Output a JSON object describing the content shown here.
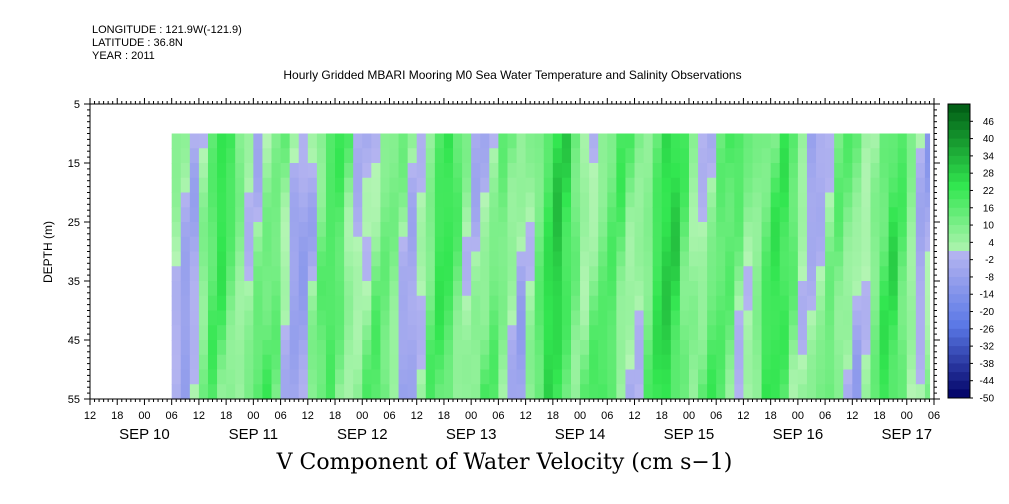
{
  "header": {
    "longitude": "LONGITUDE : 121.9W(-121.9)",
    "latitude": "LATITUDE : 36.8N",
    "year": "YEAR : 2011"
  },
  "chart_data": {
    "type": "heatmap",
    "title": "Hourly Gridded MBARI Mooring M0 Sea Water Temperature and Salinity Observations",
    "xlabel": "V Component of Water Velocity (cm s−1)",
    "ylabel": "DEPTH (m)",
    "ylim": [
      5,
      55
    ],
    "y_inverted": true,
    "y_ticks": [
      "5",
      "15",
      "25",
      "35",
      "45",
      "55"
    ],
    "data_depth_range": [
      10,
      55
    ],
    "x_range_hours": [
      0,
      186
    ],
    "data_start_hour": 18,
    "x_hour_labels": [
      "12",
      "18",
      "00",
      "06",
      "12",
      "18",
      "00",
      "06",
      "12",
      "18",
      "00",
      "06",
      "12",
      "18",
      "00",
      "06",
      "12",
      "18",
      "00",
      "06",
      "12",
      "18",
      "00",
      "06",
      "12",
      "18",
      "00",
      "06",
      "12",
      "18",
      "00",
      "06"
    ],
    "x_day_labels": [
      "SEP 10",
      "SEP 11",
      "SEP 12",
      "SEP 13",
      "SEP 14",
      "SEP 15",
      "SEP 16",
      "SEP 17"
    ],
    "colorbar_labels": [
      "46",
      "40",
      "34",
      "28",
      "22",
      "16",
      "10",
      "4",
      "-2",
      "-8",
      "-14",
      "-20",
      "-26",
      "-32",
      "-38",
      "-44",
      "-50"
    ],
    "colorbar_range": [
      -50,
      52
    ],
    "colors": {
      "positive_light": "#b4f5b4",
      "positive_mid": "#32e650",
      "positive_dark": "#005a14",
      "negative_light": "#b4b4f0",
      "negative_mid": "#5a78e6",
      "negative_dark": "#000064"
    }
  }
}
